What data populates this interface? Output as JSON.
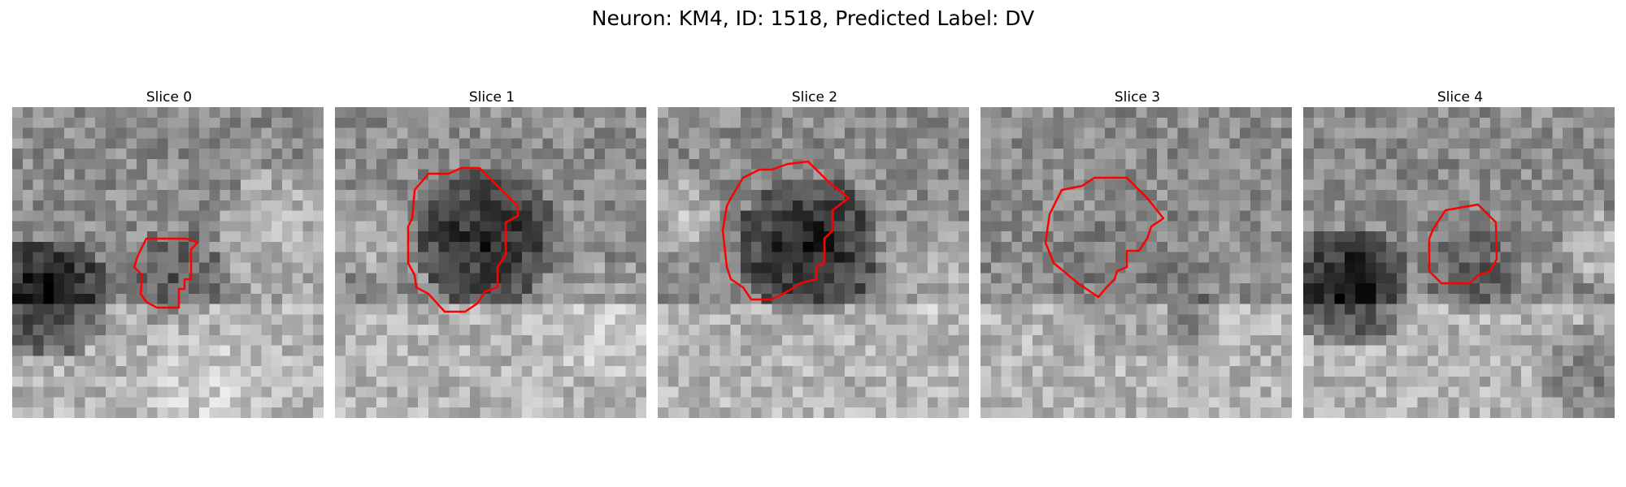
{
  "figure": {
    "title": "Neuron: KM4, ID: 1518, Predicted Label: DV"
  },
  "panels": [
    {
      "title": "Slice 0"
    },
    {
      "title": "Slice 1"
    },
    {
      "title": "Slice 2"
    },
    {
      "title": "Slice 3"
    },
    {
      "title": "Slice 4"
    }
  ],
  "colors": {
    "contour": "#ff0000",
    "background": "#ffffff"
  },
  "colormap": "grayscale"
}
